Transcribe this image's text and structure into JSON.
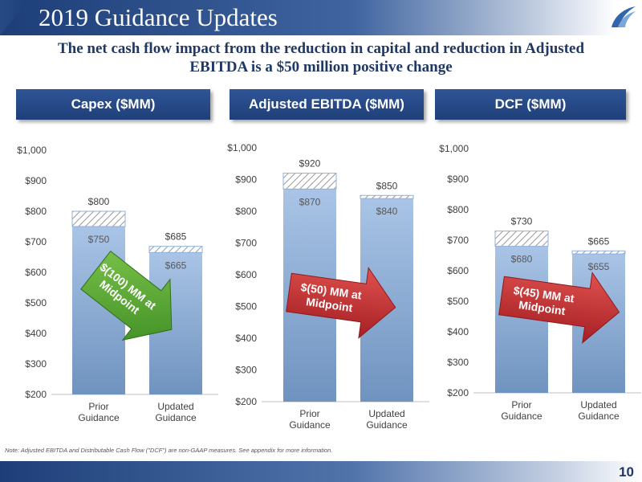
{
  "slide": {
    "title": "2019 Guidance Updates",
    "subtitle_line1": "The net cash flow impact from the reduction in capital and reduction in Adjusted",
    "subtitle_line2": "EBITDA is a $50 million positive change",
    "footnote": "Note: Adjusted EBITDA and Distributable Cash Flow (\"DCF\") are non-GAAP measures. See appendix for more information.",
    "page_number": "10"
  },
  "colors": {
    "brand_dark": "#1f3864",
    "header_blue": "#2f5597",
    "bar_blue": "#8fb0d9",
    "arrow_green": "#4aa12c",
    "arrow_red": "#c0282c"
  },
  "chart_data": [
    {
      "type": "bar",
      "title": "Capex ($MM)",
      "categories": [
        "Prior\nGuidance",
        "Updated\nGuidance"
      ],
      "ylim": [
        200,
        1000
      ],
      "yticks": [
        "$200",
        "$300",
        "$400",
        "$500",
        "$600",
        "$700",
        "$800",
        "$900",
        "$1,000"
      ],
      "range_low": [
        750,
        665
      ],
      "range_high": [
        800,
        685
      ],
      "low_labels": [
        "$750",
        "$665"
      ],
      "high_labels": [
        "$800",
        "$685"
      ],
      "arrow": {
        "label": "$(100) MM at\nMidpoint",
        "color": "green",
        "direction": "down"
      }
    },
    {
      "type": "bar",
      "title": "Adjusted EBITDA ($MM)",
      "categories": [
        "Prior\nGuidance",
        "Updated\nGuidance"
      ],
      "ylim": [
        200,
        1000
      ],
      "yticks": [
        "$200",
        "$300",
        "$400",
        "$500",
        "$600",
        "$700",
        "$800",
        "$900",
        "$1,000"
      ],
      "range_low": [
        870,
        840
      ],
      "range_high": [
        920,
        850
      ],
      "low_labels": [
        "$870",
        "$840"
      ],
      "high_labels": [
        "$920",
        "$850"
      ],
      "arrow": {
        "label": "$(50) MM at\nMidpoint",
        "color": "red",
        "direction": "right"
      }
    },
    {
      "type": "bar",
      "title": "DCF ($MM)",
      "categories": [
        "Prior\nGuidance",
        "Updated\nGuidance"
      ],
      "ylim": [
        200,
        1000
      ],
      "yticks": [
        "$200",
        "$300",
        "$400",
        "$500",
        "$600",
        "$700",
        "$800",
        "$900",
        "$1,000"
      ],
      "range_low": [
        680,
        655
      ],
      "range_high": [
        730,
        665
      ],
      "low_labels": [
        "$680",
        "$655"
      ],
      "high_labels": [
        "$730",
        "$665"
      ],
      "arrow": {
        "label": "$(45) MM at\nMidpoint",
        "color": "red",
        "direction": "right"
      }
    }
  ]
}
